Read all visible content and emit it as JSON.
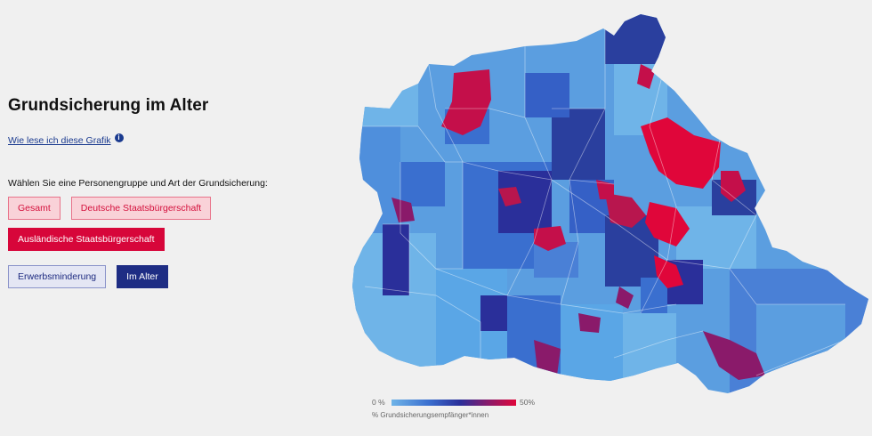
{
  "panel": {
    "title": "Grundsicherung im Alter",
    "help_link": "Wie lese ich diese Grafik",
    "help_icon": "info-icon",
    "prompt": "Wählen Sie eine Personengruppe und Art der Grundsicherung:"
  },
  "buttons": {
    "gesamt": "Gesamt",
    "deutsche": "Deutsche Staatsbürgerschaft",
    "auslaendische": "Ausländische Staatsbürgerschaft",
    "erwerbsminderung": "Erwerbsminderung",
    "im_alter": "Im Alter"
  },
  "legend": {
    "min": "0 %",
    "max": "50%",
    "caption": "% Grundsicherungsempfänger*innen"
  },
  "colors": {
    "light_blue": "#6fb4e8",
    "mid_blue": "#3a6fcf",
    "dark_blue": "#2a2f9a",
    "purple": "#8a1a6a",
    "red": "#e0063a"
  }
}
